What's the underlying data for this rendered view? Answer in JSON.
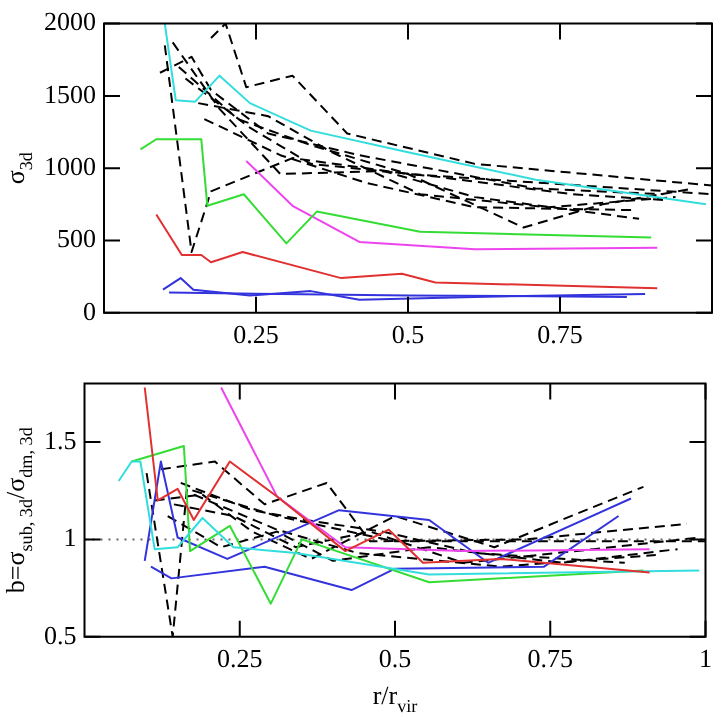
{
  "chart_data": [
    {
      "type": "line",
      "ylabel": "σ$_{3d}$",
      "xlim": [
        0,
        1
      ],
      "ylim": [
        0,
        2000
      ],
      "xticks": [
        0.25,
        0.5,
        0.75
      ],
      "yticks": [
        0,
        500,
        1000,
        1500,
        2000
      ],
      "grid": false,
      "legend": false,
      "marker": "none",
      "series": [
        {
          "color": "#33dddd",
          "line_style": "solid",
          "x": [
            0.1,
            0.118,
            0.15,
            0.19,
            0.24,
            0.34,
            0.5,
            0.71,
            0.99
          ],
          "values": [
            2000,
            1470,
            1460,
            1640,
            1450,
            1260,
            1110,
            920,
            750
          ]
        },
        {
          "color": "#33dd33",
          "line_style": "solid",
          "x": [
            0.06,
            0.086,
            0.16,
            0.17,
            0.23,
            0.3,
            0.35,
            0.52,
            0.9
          ],
          "values": [
            1130,
            1200,
            1200,
            740,
            820,
            480,
            700,
            560,
            520
          ]
        },
        {
          "color": "#ee44ee",
          "line_style": "solid",
          "x": [
            0.234,
            0.31,
            0.42,
            0.61,
            0.91
          ],
          "values": [
            1050,
            740,
            490,
            440,
            450
          ]
        },
        {
          "color": "#e03030",
          "line_style": "solid",
          "x": [
            0.086,
            0.128,
            0.16,
            0.176,
            0.228,
            0.39,
            0.49,
            0.545,
            0.91
          ],
          "values": [
            680,
            400,
            400,
            350,
            420,
            240,
            270,
            210,
            170
          ]
        },
        {
          "color": "#3333dd",
          "line_style": "solid",
          "x": [
            0.097,
            0.126,
            0.147,
            0.24,
            0.34,
            0.42,
            0.61,
            0.89
          ],
          "values": [
            160,
            240,
            160,
            120,
            150,
            90,
            110,
            130
          ]
        },
        {
          "color": "#3333dd",
          "line_style": "solid",
          "x": [
            0.107,
            0.29,
            0.5,
            0.86
          ],
          "values": [
            140,
            130,
            120,
            110
          ]
        },
        {
          "color": "#000000",
          "line_style": "dashed",
          "x": [
            0.1,
            0.144,
            0.176,
            0.31,
            0.5,
            1.0
          ],
          "values": [
            1850,
            420,
            840,
            1070,
            960,
            820
          ]
        },
        {
          "color": "#000000",
          "line_style": "dashed",
          "x": [
            0.176,
            0.2,
            0.234,
            0.31,
            0.4,
            0.61,
            1.0
          ],
          "values": [
            1900,
            2000,
            1560,
            1640,
            1240,
            1030,
            880
          ]
        },
        {
          "color": "#000000",
          "line_style": "dashed",
          "x": [
            0.092,
            0.144,
            0.176,
            0.27,
            0.42,
            0.71,
            0.92
          ],
          "values": [
            1660,
            1770,
            1540,
            1240,
            1090,
            860,
            820
          ]
        },
        {
          "color": "#000000",
          "line_style": "dashed",
          "x": [
            0.113,
            0.19,
            0.29,
            0.46,
            0.61,
            0.88
          ],
          "values": [
            1870,
            1410,
            960,
            980,
            800,
            650
          ]
        },
        {
          "color": "#000000",
          "line_style": "dashed",
          "x": [
            0.123,
            0.22,
            0.34,
            0.5,
            0.69,
            0.82,
            0.97
          ],
          "values": [
            1700,
            1340,
            1160,
            960,
            590,
            750,
            860
          ]
        },
        {
          "color": "#000000",
          "line_style": "dashed",
          "x": [
            0.134,
            0.24,
            0.34,
            0.55,
            0.77,
            0.92
          ],
          "values": [
            1620,
            1280,
            1030,
            940,
            820,
            780
          ]
        },
        {
          "color": "#000000",
          "line_style": "dashed",
          "x": [
            0.155,
            0.27,
            0.375,
            0.52,
            0.73,
            0.94
          ],
          "values": [
            1450,
            1360,
            1110,
            820,
            730,
            800
          ]
        },
        {
          "color": "#000000",
          "line_style": "dashed",
          "x": [
            0.165,
            0.29,
            0.43,
            0.61,
            0.87
          ],
          "values": [
            1340,
            1090,
            900,
            730,
            710
          ]
        }
      ]
    },
    {
      "type": "line",
      "xlabel": "r/r$_{vir}$",
      "ylabel": "b=σ$_{sub, 3d}$/σ$_{dm, 3d}$",
      "xlim": [
        0,
        1
      ],
      "ylim": [
        0.5,
        1.8
      ],
      "xticks": [
        0.25,
        0.5,
        0.75,
        1
      ],
      "yticks": [
        0.5,
        1,
        1.5
      ],
      "grid": false,
      "legend": false,
      "marker": "none",
      "ref_lines": [
        {
          "axis": "y",
          "value": 1,
          "color": "#666666",
          "line_style": "dotted"
        }
      ],
      "series": [
        {
          "color": "#e03030",
          "line_style": "solid",
          "x": [
            0.097,
            0.118,
            0.15,
            0.176,
            0.234,
            0.31,
            0.42,
            0.49,
            0.545,
            0.67,
            0.91
          ],
          "values": [
            1.78,
            1.2,
            1.26,
            1.1,
            1.4,
            1.22,
            0.94,
            1.05,
            0.88,
            0.9,
            0.83
          ]
        },
        {
          "color": "#ee44ee",
          "line_style": "solid",
          "x": [
            0.22,
            0.31,
            0.42,
            0.61,
            0.91
          ],
          "values": [
            1.78,
            1.22,
            0.96,
            0.94,
            0.95
          ]
        },
        {
          "color": "#33dddd",
          "line_style": "solid",
          "x": [
            0.055,
            0.076,
            0.09,
            0.113,
            0.15,
            0.19,
            0.24,
            0.34,
            0.555,
            0.99
          ],
          "values": [
            1.3,
            1.4,
            1.4,
            0.95,
            0.96,
            1.11,
            0.96,
            0.93,
            0.82,
            0.84
          ]
        },
        {
          "color": "#33dd33",
          "line_style": "solid",
          "x": [
            0.076,
            0.16,
            0.17,
            0.234,
            0.3,
            0.35,
            0.555,
            0.9
          ],
          "values": [
            1.4,
            1.48,
            0.94,
            1.07,
            0.67,
            1.0,
            0.78,
            0.84
          ]
        },
        {
          "color": "#3333dd",
          "line_style": "solid",
          "x": [
            0.097,
            0.123,
            0.15,
            0.23,
            0.41,
            0.555,
            0.65,
            0.88
          ],
          "values": [
            0.89,
            1.4,
            1.01,
            0.9,
            1.15,
            1.1,
            0.88,
            1.21
          ]
        },
        {
          "color": "#3333dd",
          "line_style": "solid",
          "x": [
            0.107,
            0.14,
            0.29,
            0.43,
            0.5,
            0.74,
            0.86
          ],
          "values": [
            0.86,
            0.8,
            0.86,
            0.74,
            0.85,
            0.86,
            1.12
          ]
        },
        {
          "color": "#000000",
          "line_style": "dashed",
          "x": [
            0.1,
            0.142,
            0.165,
            0.31,
            0.5,
            1.0
          ],
          "values": [
            1.34,
            0.5,
            1.26,
            1.12,
            0.99,
            0.99
          ]
        },
        {
          "color": "#000000",
          "line_style": "dashed",
          "x": [
            0.123,
            0.21,
            0.29,
            0.39,
            0.46,
            0.71,
            0.97
          ],
          "values": [
            1.36,
            1.4,
            1.18,
            1.29,
            0.99,
            1.0,
            1.08
          ]
        },
        {
          "color": "#000000",
          "line_style": "dashed",
          "x": [
            0.113,
            0.19,
            0.27,
            0.365,
            0.5,
            0.66,
            0.9
          ],
          "values": [
            1.2,
            1.23,
            1.04,
            0.9,
            1.12,
            0.96,
            1.27
          ]
        },
        {
          "color": "#000000",
          "line_style": "dashed",
          "x": [
            0.144,
            0.24,
            0.34,
            0.46,
            0.61,
            0.82,
            0.99
          ],
          "values": [
            1.18,
            1.12,
            0.96,
            1.04,
            0.88,
            0.95,
            1.01
          ]
        },
        {
          "color": "#000000",
          "line_style": "dashed",
          "x": [
            0.134,
            0.22,
            0.31,
            0.4,
            0.555,
            0.77,
            0.955
          ],
          "values": [
            1.12,
            0.96,
            1.04,
            0.89,
            0.96,
            0.88,
            0.95
          ]
        },
        {
          "color": "#000000",
          "line_style": "dashed",
          "x": [
            0.155,
            0.27,
            0.355,
            0.48,
            0.63,
            0.87
          ],
          "values": [
            1.29,
            1.15,
            1.1,
            1.04,
            0.93,
            0.88
          ]
        },
        {
          "color": "#000000",
          "line_style": "dashed",
          "x": [
            0.176,
            0.31,
            0.44,
            0.67,
            0.92
          ],
          "values": [
            1.23,
            1.05,
            0.93,
            0.86,
            0.92
          ]
        }
      ]
    }
  ]
}
